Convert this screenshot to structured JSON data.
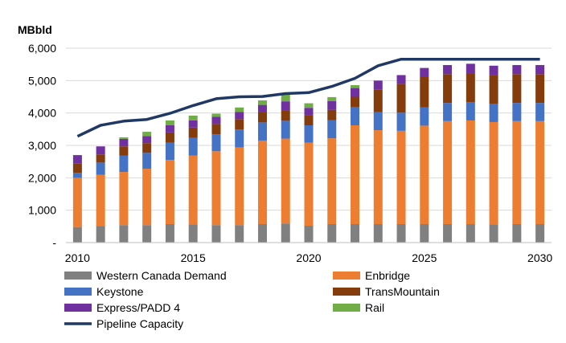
{
  "chart_data": {
    "type": "bar",
    "stacked": true,
    "ylabel": "MBbld",
    "ylim": [
      0,
      6000
    ],
    "yticks": [
      {
        "value": 0,
        "label": "-"
      },
      {
        "value": 1000,
        "label": "1,000"
      },
      {
        "value": 2000,
        "label": "2,000"
      },
      {
        "value": 3000,
        "label": "3,000"
      },
      {
        "value": 4000,
        "label": "4,000"
      },
      {
        "value": 5000,
        "label": "5,000"
      },
      {
        "value": 6000,
        "label": "6,000"
      }
    ],
    "x": [
      2010,
      2011,
      2012,
      2013,
      2014,
      2015,
      2016,
      2017,
      2018,
      2019,
      2020,
      2021,
      2022,
      2023,
      2024,
      2025,
      2026,
      2027,
      2028,
      2029,
      2030
    ],
    "xtick_labels": [
      "2010",
      "2015",
      "2020",
      "2025",
      "2030"
    ],
    "grid": "horizontal",
    "legend_position": "bottom",
    "series": [
      {
        "name": "Western Canada Demand",
        "color": "#808080",
        "values": [
          480,
          510,
          540,
          540,
          570,
          560,
          540,
          540,
          570,
          590,
          520,
          570,
          570,
          570,
          570,
          570,
          570,
          570,
          560,
          570,
          570
        ]
      },
      {
        "name": "Enbridge",
        "color": "#ED7D31",
        "values": [
          1520,
          1580,
          1640,
          1740,
          1980,
          2130,
          2280,
          2400,
          2580,
          2620,
          2560,
          2650,
          3050,
          2900,
          2880,
          3040,
          3180,
          3200,
          3160,
          3180,
          3180
        ]
      },
      {
        "name": "Keystone",
        "color": "#4472C4",
        "values": [
          150,
          380,
          510,
          490,
          530,
          540,
          520,
          550,
          560,
          550,
          540,
          560,
          560,
          560,
          560,
          560,
          560,
          560,
          560,
          560,
          560
        ]
      },
      {
        "name": "TransMountain",
        "color": "#843C0C",
        "values": [
          300,
          250,
          280,
          300,
          320,
          320,
          320,
          320,
          320,
          320,
          320,
          320,
          320,
          700,
          890,
          950,
          890,
          900,
          900,
          890,
          890
        ]
      },
      {
        "name": "Express/PADD 4",
        "color": "#7030A0",
        "values": [
          250,
          250,
          230,
          220,
          220,
          220,
          220,
          220,
          220,
          280,
          220,
          270,
          270,
          270,
          270,
          270,
          280,
          290,
          280,
          280,
          280
        ]
      },
      {
        "name": "Rail",
        "color": "#70AD47",
        "values": [
          0,
          0,
          50,
          130,
          150,
          150,
          100,
          140,
          140,
          240,
          140,
          120,
          90,
          0,
          0,
          0,
          0,
          0,
          0,
          0,
          0
        ]
      }
    ],
    "line_series": {
      "name": "Pipeline Capacity",
      "color": "#203864",
      "values": [
        3280,
        3620,
        3750,
        3800,
        3990,
        4230,
        4440,
        4500,
        4510,
        4600,
        4630,
        4820,
        5070,
        5460,
        5660,
        5660,
        5660,
        5660,
        5660,
        5660,
        5660
      ]
    }
  }
}
